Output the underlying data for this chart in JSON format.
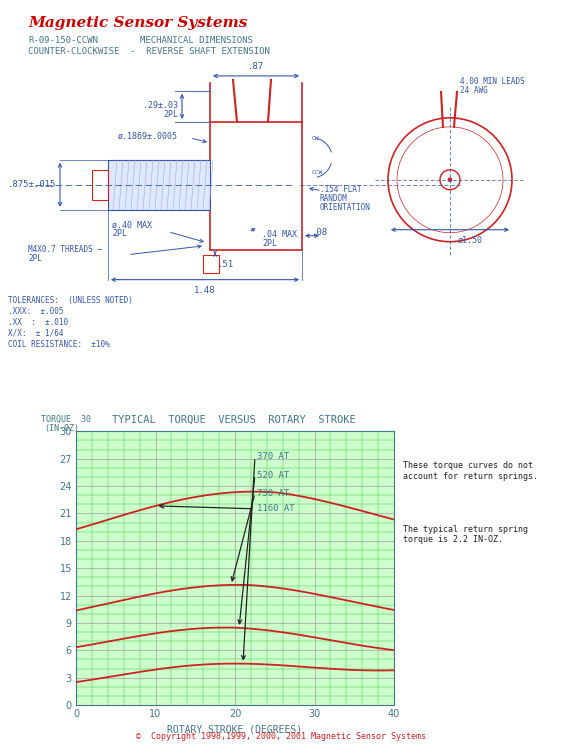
{
  "title": "Magnetic Sensor Systems",
  "subtitle1": "R-09-150-CCWN",
  "subtitle2": "MECHANICAL DIMENSIONS",
  "subtitle3": "COUNTER-CLOCKWISE  -  REVERSE SHAFT EXTENSION",
  "title_color": "#cc0000",
  "dim_color": "#3355aa",
  "red_color": "#cc2222",
  "teal_color": "#447788",
  "bg_color": "#ffffff",
  "tolerances": [
    "TOLERANCES:  (UNLESS NOTED)",
    ".XXX:  ±.005",
    ".XX  :  ±.010",
    "X/X:  ± 1/64",
    "COIL RESISTANCE:  ±10%"
  ],
  "graph_title": "TYPICAL  TORQUE  VERSUS  ROTARY  STROKE",
  "graph_xlabel": "ROTARY STROKE (DEGREES)",
  "graph_ylim": [
    0,
    30
  ],
  "graph_xlim": [
    0,
    40
  ],
  "graph_yticks": [
    0,
    3,
    6,
    9,
    12,
    15,
    18,
    21,
    24,
    27,
    30
  ],
  "graph_xticks": [
    0,
    10,
    20,
    30,
    40
  ],
  "curve_labels": [
    "370 AT",
    "520 AT",
    "730 AT",
    "1160 AT"
  ],
  "note1": "These torque curves do not\naccount for return springs.",
  "note2": "The typical return spring\ntorque is 2.2 IN-OZ.",
  "copyright": "©  Copyright 1998,1999, 2000, 2001 Magnetic Sensor Systems",
  "graph_bg": "#ccffcc",
  "grid_color": "#44cc44",
  "major_grid_color": "#aaaaaa"
}
